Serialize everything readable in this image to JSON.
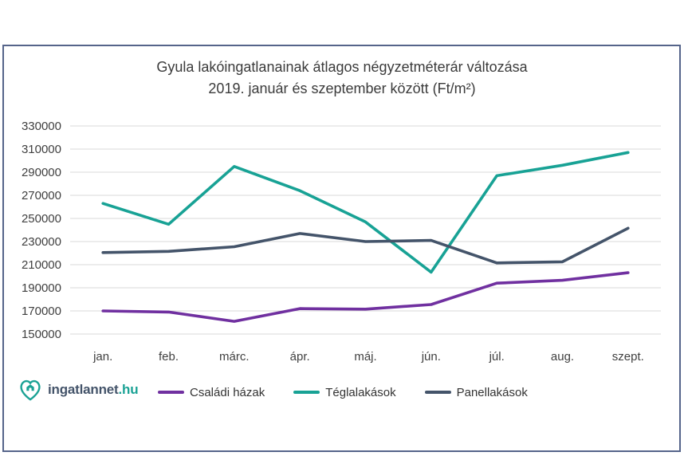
{
  "title": {
    "line1": "Gyula lakóingatlanainak átlagos négyzetméterár változása",
    "line2": "2019. január és szeptember között (Ft/m²)"
  },
  "logo": {
    "brand": "ingatlannet",
    "tld": ".hu",
    "icon": "heart-house-icon",
    "brand_color": "#44546A",
    "tld_color": "#1BA295"
  },
  "colors": {
    "border": "#55648A",
    "gridline": "#D9D9D9",
    "axis_text": "#404040",
    "title_text": "#3B3B3B"
  },
  "chart_data": {
    "type": "line",
    "title": "Gyula lakóingatlanainak átlagos négyzetméterár változása 2019. január és szeptember között (Ft/m²)",
    "xlabel": "",
    "ylabel": "",
    "categories": [
      "jan.",
      "feb.",
      "márc.",
      "ápr.",
      "máj.",
      "jún.",
      "júl.",
      "aug.",
      "szept."
    ],
    "series": [
      {
        "name": "Családi házak",
        "color": "#7030A0",
        "values": [
          170000,
          169000,
          161000,
          172000,
          171500,
          175500,
          194000,
          196500,
          203000
        ]
      },
      {
        "name": "Téglalakások",
        "color": "#18A295",
        "values": [
          263000,
          245000,
          295000,
          274000,
          247000,
          203500,
          287000,
          296000,
          307000
        ]
      },
      {
        "name": "Panellakások",
        "color": "#44546A",
        "values": [
          220500,
          221500,
          225500,
          237000,
          230000,
          231000,
          211500,
          212500,
          241500
        ]
      }
    ],
    "ylim": [
      150000,
      330000
    ],
    "ytick_step": 20000,
    "yticks": [
      150000,
      170000,
      190000,
      210000,
      230000,
      250000,
      270000,
      290000,
      310000,
      330000
    ],
    "grid": true,
    "legend_position": "bottom"
  }
}
